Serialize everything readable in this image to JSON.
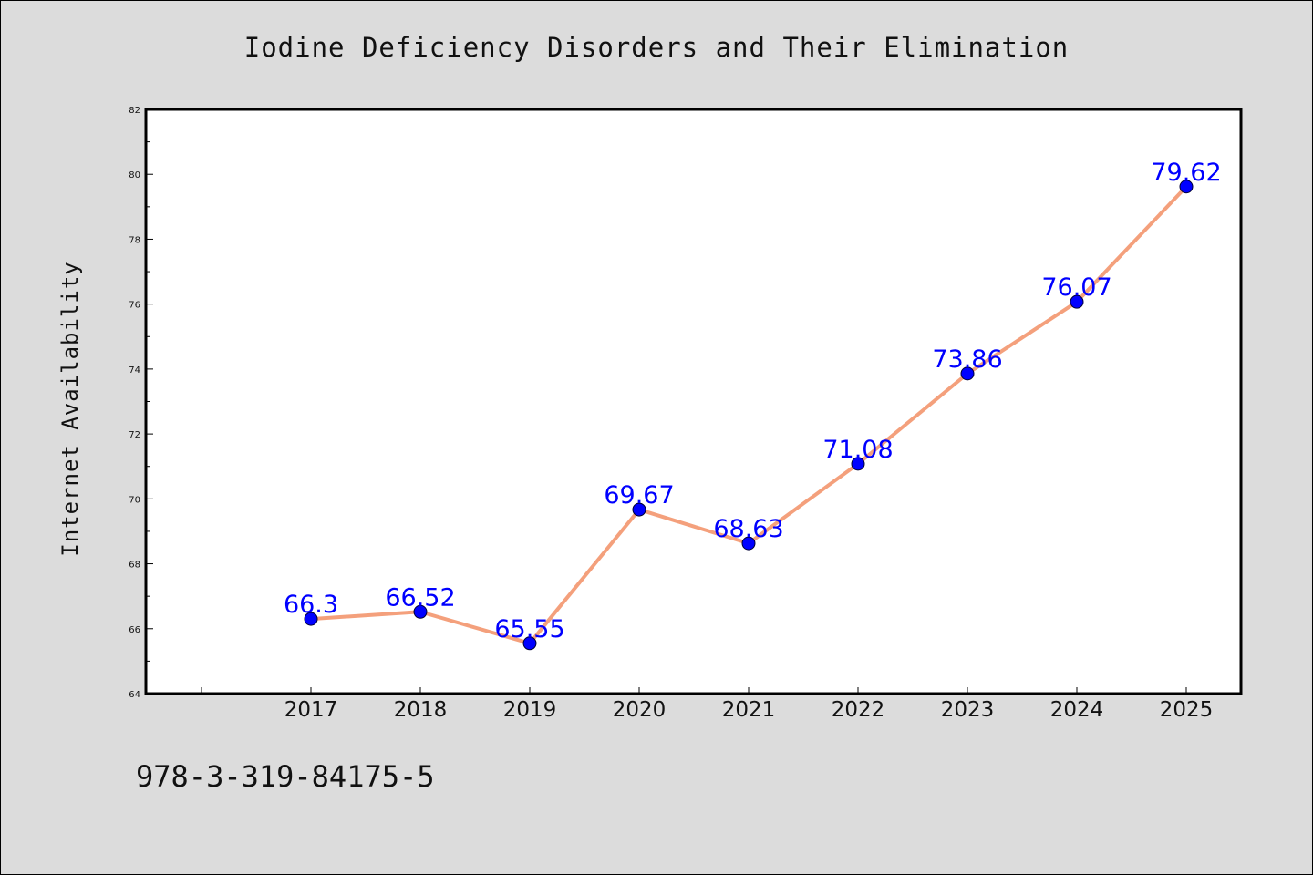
{
  "chart_data": {
    "type": "line",
    "title": "Iodine Deficiency Disorders and Their Elimination",
    "xlabel": "",
    "ylabel": "Internet Availability",
    "x": [
      "2017",
      "2018",
      "2019",
      "2020",
      "2021",
      "2022",
      "2023",
      "2024",
      "2025"
    ],
    "series": [
      {
        "values": [
          66.3,
          66.52,
          65.55,
          69.67,
          68.63,
          71.08,
          73.86,
          76.07,
          79.62
        ],
        "labels": [
          "66.3",
          "66.52",
          "65.55",
          "69.67",
          "68.63",
          "71.08",
          "73.86",
          "76.07",
          "79.62"
        ]
      }
    ],
    "ylim": [
      64,
      82
    ],
    "yticks": [
      64,
      66,
      68,
      70,
      72,
      74,
      76,
      78,
      80,
      82
    ],
    "grid": false,
    "line_color": "#f4a07c",
    "marker_color": "#0000ff",
    "label_color": "#0000ff",
    "background_color": "#dcdcdc",
    "plot_background_color": "#ffffff"
  },
  "footer": {
    "code": "978-3-319-84175-5"
  }
}
